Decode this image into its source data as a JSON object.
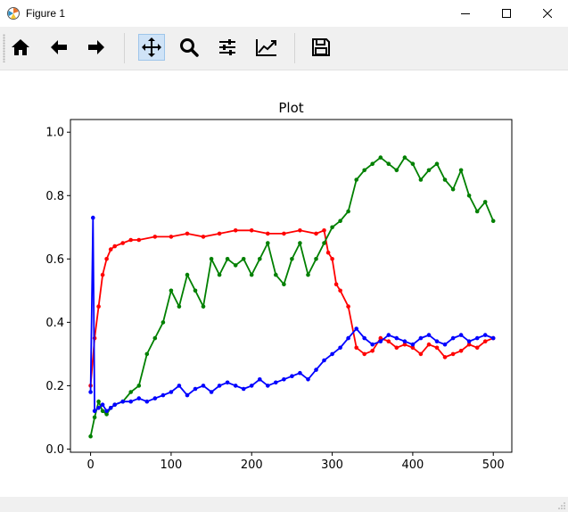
{
  "window": {
    "title": "Figure 1",
    "minimize_icon": "minimize-icon",
    "maximize_icon": "maximize-icon",
    "close_icon": "close-icon"
  },
  "toolbar": {
    "items": [
      {
        "name": "home-button",
        "icon": "home-icon"
      },
      {
        "name": "back-button",
        "icon": "arrow-left-icon"
      },
      {
        "name": "forward-button",
        "icon": "arrow-right-icon"
      },
      {
        "name": "pan-button",
        "icon": "move-icon",
        "active": true
      },
      {
        "name": "zoom-button",
        "icon": "magnifier-icon"
      },
      {
        "name": "configure-subplots-button",
        "icon": "sliders-icon"
      },
      {
        "name": "edit-axis-button",
        "icon": "line-chart-icon"
      },
      {
        "name": "save-button",
        "icon": "floppy-disk-icon"
      }
    ]
  },
  "chart_data": {
    "type": "line",
    "title": "Plot",
    "xlabel": "",
    "ylabel": "",
    "xlim": [
      -25,
      523
    ],
    "ylim": [
      -0.01,
      1.04
    ],
    "xticks": [
      0,
      100,
      200,
      300,
      400,
      500
    ],
    "yticks": [
      0.0,
      0.2,
      0.4,
      0.6,
      0.8,
      1.0
    ],
    "grid": false,
    "marker": "dot",
    "series": [
      {
        "color": "#ff0000",
        "x": [
          0,
          5,
          10,
          15,
          20,
          25,
          30,
          40,
          50,
          60,
          80,
          100,
          120,
          140,
          160,
          180,
          200,
          220,
          240,
          260,
          280,
          290,
          295,
          300,
          305,
          310,
          320,
          330,
          340,
          350,
          360,
          370,
          380,
          390,
          400,
          410,
          420,
          430,
          440,
          450,
          460,
          470,
          480,
          490,
          500
        ],
        "y": [
          0.2,
          0.35,
          0.45,
          0.55,
          0.6,
          0.63,
          0.64,
          0.65,
          0.66,
          0.66,
          0.67,
          0.67,
          0.68,
          0.67,
          0.68,
          0.69,
          0.69,
          0.68,
          0.68,
          0.69,
          0.68,
          0.69,
          0.62,
          0.6,
          0.52,
          0.5,
          0.45,
          0.32,
          0.3,
          0.31,
          0.35,
          0.34,
          0.32,
          0.33,
          0.32,
          0.3,
          0.33,
          0.32,
          0.29,
          0.3,
          0.31,
          0.33,
          0.32,
          0.34,
          0.35
        ]
      },
      {
        "color": "#008000",
        "x": [
          0,
          5,
          10,
          15,
          20,
          25,
          30,
          40,
          50,
          60,
          70,
          80,
          90,
          100,
          110,
          120,
          130,
          140,
          150,
          160,
          170,
          180,
          190,
          200,
          210,
          220,
          230,
          240,
          250,
          260,
          270,
          280,
          290,
          300,
          310,
          320,
          330,
          340,
          350,
          360,
          370,
          380,
          390,
          400,
          410,
          420,
          430,
          440,
          450,
          460,
          470,
          480,
          490,
          500
        ],
        "y": [
          0.04,
          0.1,
          0.15,
          0.12,
          0.11,
          0.13,
          0.14,
          0.15,
          0.18,
          0.2,
          0.3,
          0.35,
          0.4,
          0.5,
          0.45,
          0.55,
          0.5,
          0.45,
          0.6,
          0.55,
          0.6,
          0.58,
          0.6,
          0.55,
          0.6,
          0.65,
          0.55,
          0.52,
          0.6,
          0.65,
          0.55,
          0.6,
          0.65,
          0.7,
          0.72,
          0.75,
          0.85,
          0.88,
          0.9,
          0.92,
          0.9,
          0.88,
          0.92,
          0.9,
          0.85,
          0.88,
          0.9,
          0.85,
          0.82,
          0.88,
          0.8,
          0.75,
          0.78,
          0.72
        ]
      },
      {
        "color": "#0000ff",
        "x": [
          0,
          3,
          5,
          10,
          15,
          20,
          25,
          30,
          40,
          50,
          60,
          70,
          80,
          90,
          100,
          110,
          120,
          130,
          140,
          150,
          160,
          170,
          180,
          190,
          200,
          210,
          220,
          230,
          240,
          250,
          260,
          270,
          280,
          290,
          300,
          310,
          320,
          330,
          340,
          350,
          360,
          370,
          380,
          390,
          400,
          410,
          420,
          430,
          440,
          450,
          460,
          470,
          480,
          490,
          500
        ],
        "y": [
          0.18,
          0.73,
          0.12,
          0.13,
          0.14,
          0.12,
          0.13,
          0.14,
          0.15,
          0.15,
          0.16,
          0.15,
          0.16,
          0.17,
          0.18,
          0.2,
          0.17,
          0.19,
          0.2,
          0.18,
          0.2,
          0.21,
          0.2,
          0.19,
          0.2,
          0.22,
          0.2,
          0.21,
          0.22,
          0.23,
          0.24,
          0.22,
          0.25,
          0.28,
          0.3,
          0.32,
          0.35,
          0.38,
          0.35,
          0.33,
          0.34,
          0.36,
          0.35,
          0.34,
          0.33,
          0.35,
          0.36,
          0.34,
          0.33,
          0.35,
          0.36,
          0.34,
          0.35,
          0.36,
          0.35
        ]
      }
    ]
  }
}
